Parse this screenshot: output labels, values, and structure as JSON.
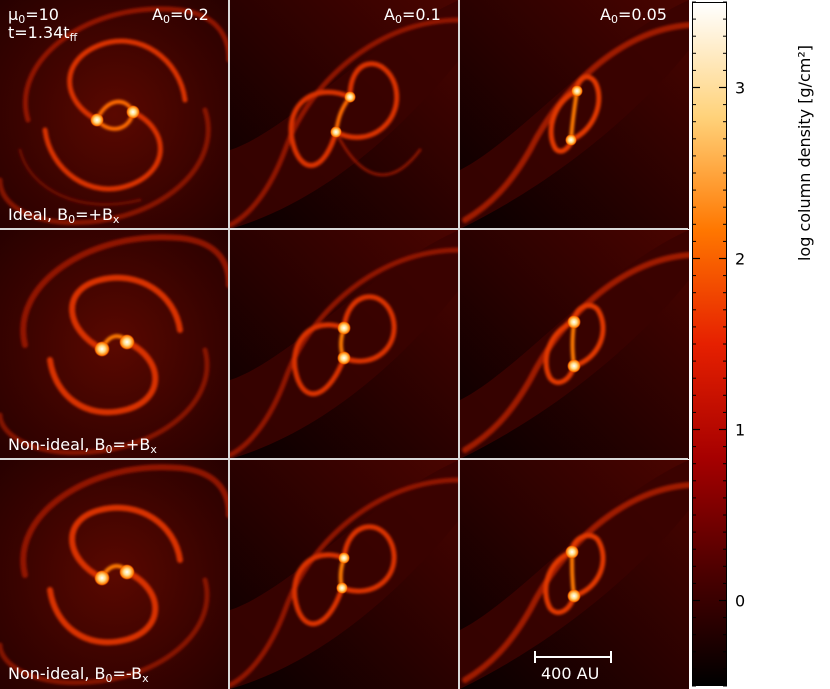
{
  "panels": [
    {
      "top_left": "μ0=10",
      "top_left_line2": "t=1.34tff",
      "top_right": "A0=0.2",
      "bottom_left": "Ideal, B0=+Bx"
    },
    {
      "top_right": "A0=0.1"
    },
    {
      "top_right": "A0=0.05"
    },
    {
      "bottom_left": "Non-ideal, B0=+Bx"
    },
    {},
    {},
    {
      "bottom_left": "Non-ideal, B0=-Bx"
    },
    {},
    {
      "scale_bar": "400 AU"
    }
  ],
  "text": {
    "mu": "μ",
    "mu_sub": "0",
    "mu_val": "=10",
    "t_pre": "t=1.34t",
    "t_sub": "ff",
    "a_pre": "A",
    "a_sub": "0",
    "a1": "=0.2",
    "a2": "=0.1",
    "a3": "=0.05",
    "ideal": "Ideal, B",
    "ni": "Non-ideal, B",
    "b_sub": "0",
    "plus_bx": "=+B",
    "minus_bx": "=-B",
    "x_sub": "x",
    "scale": "400 AU"
  },
  "colorbar": {
    "label": "log column density [g/cm²]",
    "ticks": [
      "0",
      "1",
      "2",
      "3"
    ],
    "range": [
      -0.5,
      3.5
    ],
    "colormap": "gist_heat",
    "colors": [
      "#000000",
      "#4d0000",
      "#a60000",
      "#e62000",
      "#ff7700",
      "#ffd27a",
      "#ffffff"
    ]
  }
}
